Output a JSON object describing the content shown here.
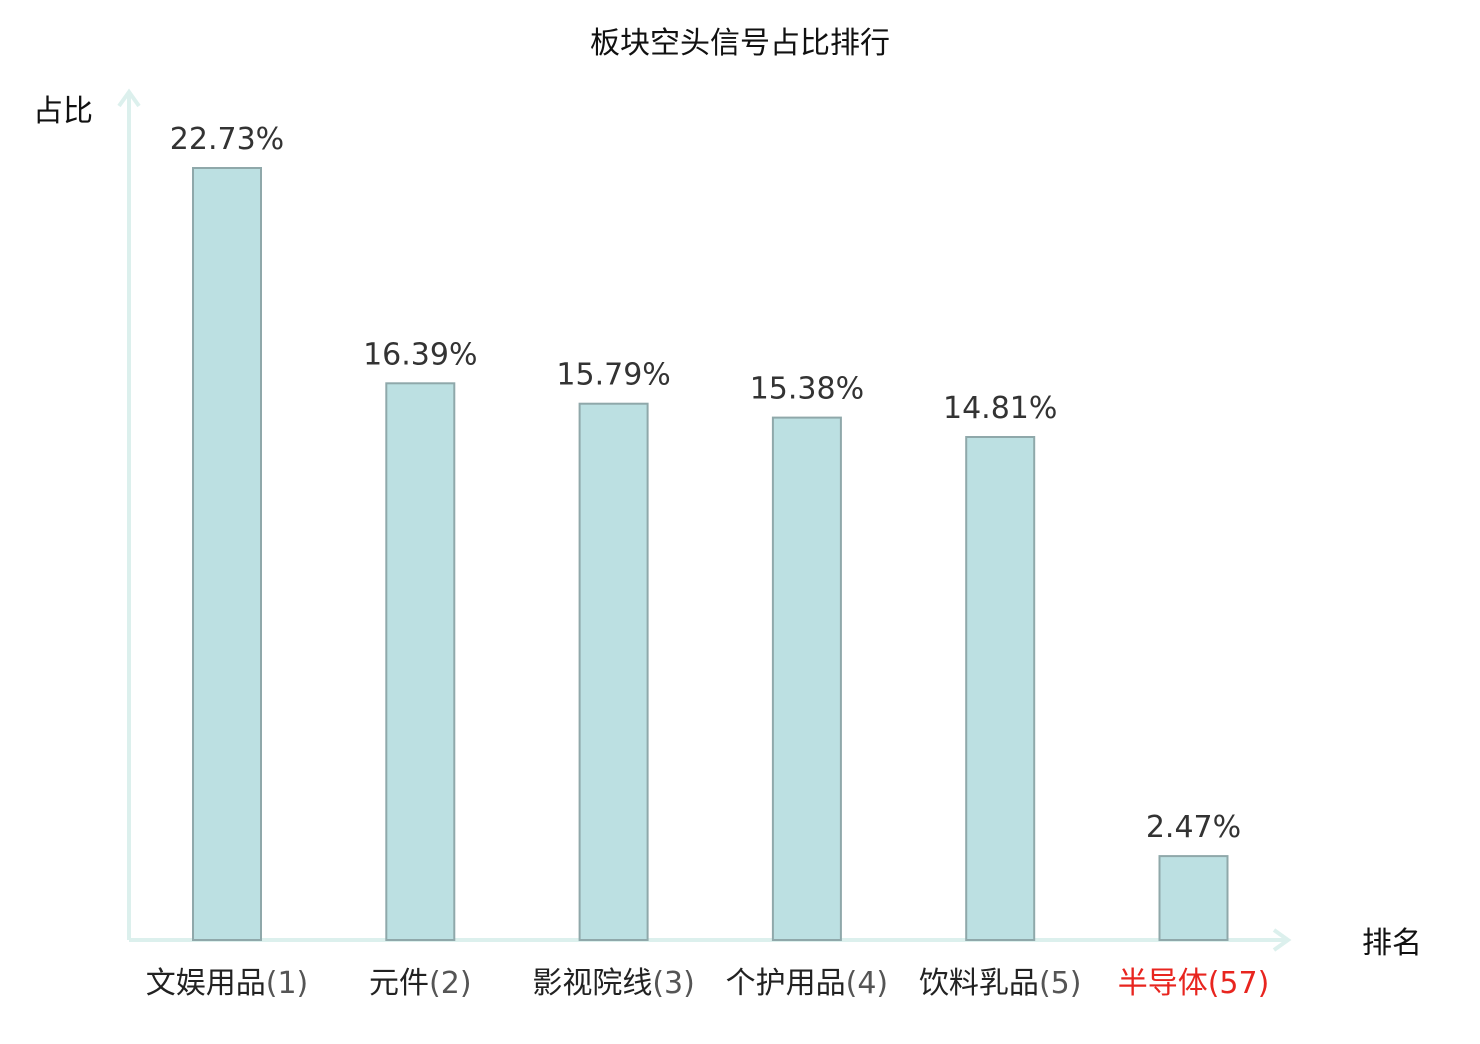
{
  "chart_data": {
    "type": "bar",
    "title": "板块空头信号占比排行",
    "ylabel": "占比",
    "xlabel": "排名",
    "ylim": [
      0,
      25
    ],
    "grid": false,
    "legend": "none",
    "categories": [
      {
        "name": "文娱用品",
        "rank": "(1)",
        "highlight": false
      },
      {
        "name": "元件",
        "rank": "(2)",
        "highlight": false
      },
      {
        "name": "影视院线",
        "rank": "(3)",
        "highlight": false
      },
      {
        "name": "个护用品",
        "rank": "(4)",
        "highlight": false
      },
      {
        "name": "饮料乳品",
        "rank": "(5)",
        "highlight": false
      },
      {
        "name": "半导体",
        "rank": "(57)",
        "highlight": true
      }
    ],
    "values": [
      22.73,
      16.39,
      15.79,
      15.38,
      14.81,
      2.47
    ],
    "value_labels": [
      "22.73%",
      "16.39%",
      "15.79%",
      "15.38%",
      "14.81%",
      "2.47%"
    ]
  },
  "colors": {
    "bar_fill": "#bce0e2",
    "bar_stroke": "#8fa8aa",
    "axis": "#dcf0ed",
    "text": "#333333",
    "category_text": "#222222",
    "rank_text": "#555555",
    "highlight": "#e8251f"
  }
}
